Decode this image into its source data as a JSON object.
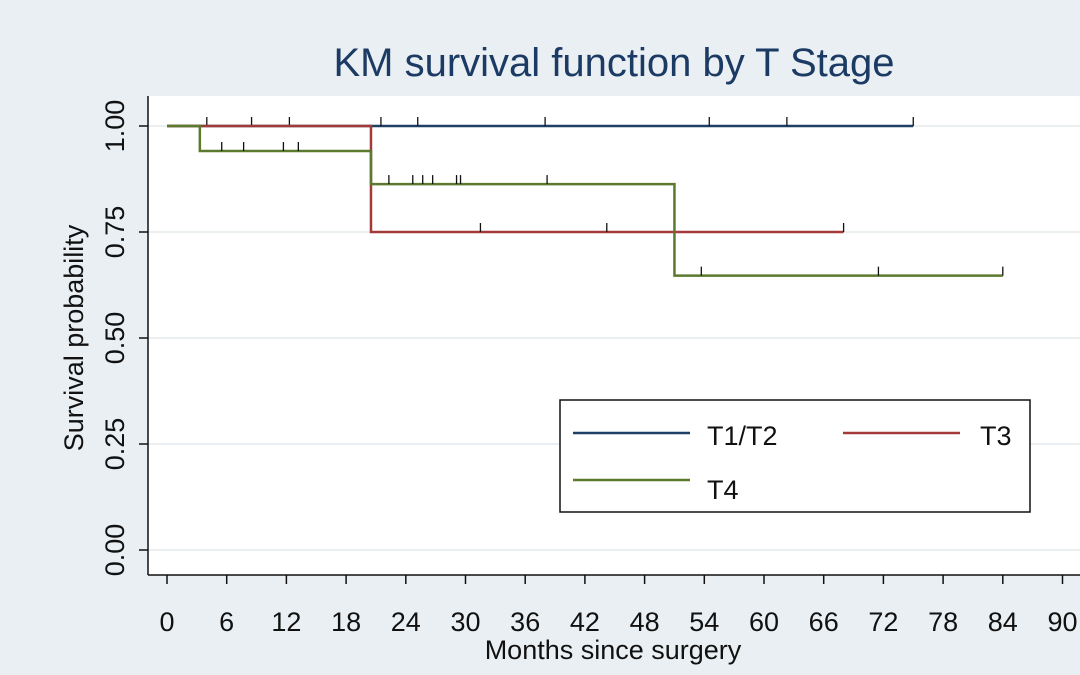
{
  "chart_data": {
    "type": "line",
    "step": true,
    "title": "KM survival function by T Stage",
    "xlabel": "Months since surgery",
    "ylabel": "Survival probability",
    "xlim": [
      0,
      90
    ],
    "ylim": [
      0,
      1
    ],
    "x_ticks": [
      0,
      6,
      12,
      18,
      24,
      30,
      36,
      42,
      48,
      54,
      60,
      66,
      72,
      78,
      84,
      90
    ],
    "y_ticks": [
      "0.00",
      "0.25",
      "0.50",
      "0.75",
      "1.00"
    ],
    "grid": true,
    "legend_position": "bottom-right",
    "legend_columns": 2,
    "series": [
      {
        "name": "T1/T2",
        "color": "#1f3f66",
        "steps": [
          [
            0,
            1.0
          ],
          [
            75,
            1.0
          ]
        ],
        "censored": [
          4,
          8.5,
          12.3,
          21.5,
          25.2,
          38,
          54.5,
          62.3,
          75
        ]
      },
      {
        "name": "T3",
        "color": "#a33a3a",
        "steps": [
          [
            0,
            1.0
          ],
          [
            20.5,
            0.75
          ],
          [
            68,
            0.75
          ]
        ],
        "censored": [
          31.5,
          44.2,
          68
        ]
      },
      {
        "name": "T4",
        "color": "#5b7a2e",
        "steps": [
          [
            0,
            1.0
          ],
          [
            3.3,
            0.941
          ],
          [
            20.5,
            0.863
          ],
          [
            51,
            0.647
          ],
          [
            84,
            0.647
          ]
        ],
        "censored": [
          5.5,
          7.7,
          11.7,
          13.2,
          22.3,
          24.7,
          25.7,
          26.7,
          29.1,
          29.5,
          38.2,
          53.7,
          71.5,
          84
        ]
      }
    ]
  }
}
